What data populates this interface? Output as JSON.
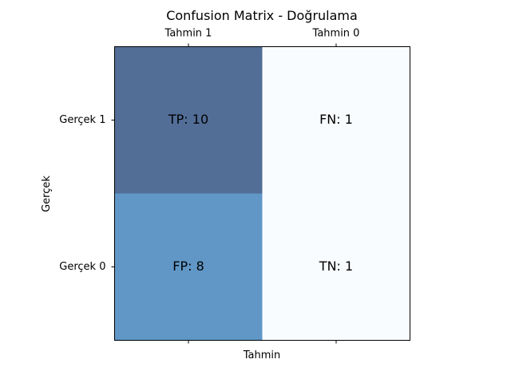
{
  "chart_data": {
    "type": "heatmap",
    "title": "Confusion Matrix - Doğrulama",
    "xlabel": "Tahmin",
    "ylabel": "Gerçek",
    "x_categories": [
      "Tahmin 1",
      "Tahmin 0"
    ],
    "y_categories": [
      "Gerçek 1",
      "Gerçek 0"
    ],
    "values": [
      [
        10,
        1
      ],
      [
        8,
        1
      ]
    ],
    "cell_labels": [
      [
        "TP: 10",
        "FN: 1"
      ],
      [
        "FP: 8",
        "TN: 1"
      ]
    ],
    "colormap": "Blues",
    "x_tick_position": "top",
    "grid": false
  }
}
